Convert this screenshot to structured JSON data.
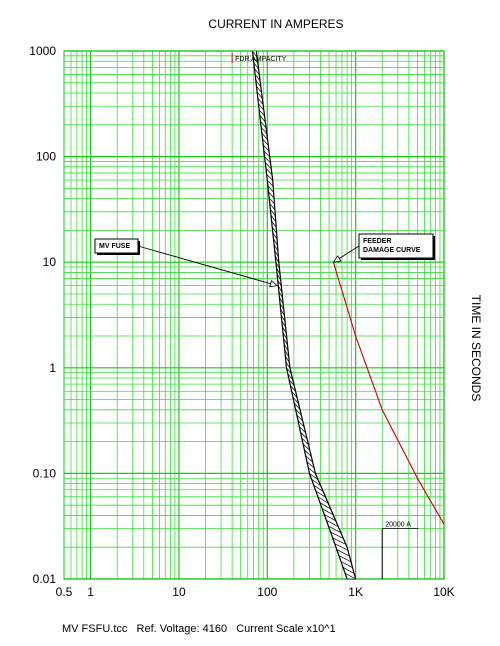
{
  "chart_data": {
    "type": "line",
    "title": "CURRENT IN AMPERES",
    "ylabel": "TIME IN SECONDS",
    "xscale": "log",
    "yscale": "log",
    "xlim": [
      0.5,
      10000
    ],
    "ylim": [
      0.01,
      1000
    ],
    "grid": true,
    "xticks": [
      {
        "value": 0.5,
        "label": "0.5"
      },
      {
        "value": 1,
        "label": "1"
      },
      {
        "value": 10,
        "label": "10"
      },
      {
        "value": 100,
        "label": "100"
      },
      {
        "value": 1000,
        "label": "1K"
      },
      {
        "value": 10000,
        "label": "10K"
      }
    ],
    "yticks": [
      {
        "value": 1000,
        "label": "1000"
      },
      {
        "value": 100,
        "label": "100"
      },
      {
        "value": 10,
        "label": "10"
      },
      {
        "value": 1,
        "label": "1"
      },
      {
        "value": 0.1,
        "label": "0.10"
      },
      {
        "value": 0.01,
        "label": "0.01"
      }
    ],
    "series": [
      {
        "name": "MV FUSE",
        "color": "#000000",
        "min_curve": [
          [
            68,
            1000
          ],
          [
            80,
            300
          ],
          [
            100,
            60
          ],
          [
            125,
            10
          ],
          [
            165,
            1
          ],
          [
            300,
            0.1
          ],
          [
            600,
            0.02
          ],
          [
            800,
            0.01
          ]
        ],
        "max_curve": [
          [
            75,
            1000
          ],
          [
            90,
            300
          ],
          [
            115,
            60
          ],
          [
            135,
            10
          ],
          [
            180,
            1
          ],
          [
            350,
            0.1
          ],
          [
            800,
            0.02
          ],
          [
            1000,
            0.01
          ]
        ]
      },
      {
        "name": "FEEDER DAMAGE CURVE",
        "color": "#cc0000",
        "points": [
          [
            560,
            10
          ],
          [
            1000,
            2
          ],
          [
            2000,
            0.4
          ],
          [
            5000,
            0.09
          ],
          [
            10000,
            0.033
          ]
        ]
      }
    ],
    "annotations": [
      {
        "text": "FDR AMPACITY",
        "x": 40,
        "color": "#cc0000"
      },
      {
        "text": "20000 A",
        "x": 2000,
        "y": 0.03
      }
    ],
    "callouts": [
      {
        "text": [
          "MV FUSE"
        ],
        "target": [
          130,
          6
        ]
      },
      {
        "text": [
          "FEEDER",
          "DAMAGE CURVE"
        ],
        "target": [
          560,
          10
        ]
      }
    ],
    "footer": "MV FSFU.tcc   Ref. Voltage: 4160   Current Scale x10^1"
  }
}
